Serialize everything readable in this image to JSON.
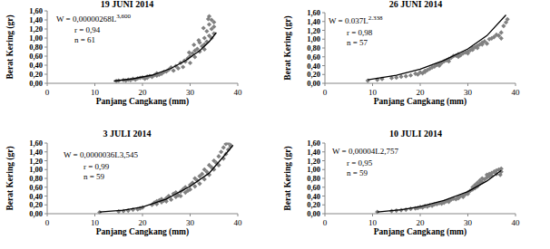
{
  "chart_data": [
    {
      "type": "scatter",
      "title": "19 JUNI 2014",
      "x_label": "Panjang Cangkang (mm)",
      "y_label": "Berat Kering (gr)",
      "xlim": [
        0,
        40
      ],
      "ylim": [
        0,
        1.6
      ],
      "xticks": [
        0,
        10,
        20,
        30,
        40
      ],
      "yticks": [
        {
          "value": 0,
          "label": "0,00"
        },
        {
          "value": 0.2,
          "label": "0,20"
        },
        {
          "value": 0.4,
          "label": "0,40"
        },
        {
          "value": 0.6,
          "label": "0,60"
        },
        {
          "value": 0.8,
          "label": "0,80"
        },
        {
          "value": 1.0,
          "label": "1,00"
        },
        {
          "value": 1.2,
          "label": "1,20"
        },
        {
          "value": 1.4,
          "label": "1,40"
        },
        {
          "value": 1.6,
          "label": "1,60"
        }
      ],
      "annotations": [
        {
          "text": "W = 0,00000268L",
          "superscript": "3,600"
        },
        {
          "text": "r = 0,94"
        },
        {
          "text": "n = 61"
        }
      ],
      "series": [
        {
          "type": "scatter",
          "color": "#808080",
          "marker": "diamond",
          "x": [
            14.5,
            15,
            16,
            16.5,
            17,
            17.5,
            18,
            18.5,
            19,
            19.5,
            20,
            20.5,
            21,
            21,
            21.5,
            22,
            22.5,
            23,
            23,
            23.5,
            24,
            24.5,
            25,
            25.5,
            26,
            26.5,
            27,
            27.5,
            28,
            28.5,
            29,
            29.5,
            30,
            30,
            30.5,
            31,
            31,
            31.5,
            32,
            32,
            32.5,
            33,
            33,
            33,
            33.5,
            33.5,
            34,
            34,
            34,
            34.5,
            34.5,
            34.5,
            35,
            35,
            35,
            33.8,
            32.8,
            31.8,
            30.8,
            29.8,
            28.8
          ],
          "values": [
            0.05,
            0.06,
            0.07,
            0.06,
            0.08,
            0.07,
            0.1,
            0.08,
            0.11,
            0.12,
            0.13,
            0.1,
            0.15,
            0.12,
            0.16,
            0.14,
            0.18,
            0.17,
            0.22,
            0.19,
            0.21,
            0.25,
            0.26,
            0.3,
            0.35,
            0.28,
            0.38,
            0.33,
            0.45,
            0.36,
            0.48,
            0.55,
            0.6,
            0.45,
            0.66,
            0.72,
            0.58,
            0.76,
            0.7,
            0.9,
            0.82,
            0.75,
            1.0,
            0.86,
            1.15,
            0.92,
            1.3,
            1.05,
            1.48,
            1.2,
            1.4,
            1.0,
            1.25,
            1.1,
            1.35,
            1.42,
            1.22,
            0.95,
            0.85,
            0.68,
            0.5
          ]
        },
        {
          "type": "line",
          "color": "#000000",
          "line_style": "solid",
          "x": [
            14,
            18,
            22,
            26,
            29,
            32,
            34,
            35.5
          ],
          "values": [
            0.05,
            0.1,
            0.18,
            0.33,
            0.5,
            0.72,
            0.92,
            1.12
          ]
        }
      ]
    },
    {
      "type": "scatter",
      "title": "26 JUNI 2014",
      "x_label": "Panjang Cangkang (mm)",
      "y_label": "Berat Kering (gr)",
      "xlim": [
        0,
        40
      ],
      "ylim": [
        0,
        1.6
      ],
      "xticks": [
        0,
        10,
        20,
        30,
        40
      ],
      "yticks": [
        {
          "value": 0,
          "label": "0,00"
        },
        {
          "value": 0.2,
          "label": "0,20"
        },
        {
          "value": 0.4,
          "label": "0,40"
        },
        {
          "value": 0.6,
          "label": "0,60"
        },
        {
          "value": 0.8,
          "label": "0,80"
        },
        {
          "value": 1.0,
          "label": "1,00"
        },
        {
          "value": 1.2,
          "label": "1,20"
        },
        {
          "value": 1.4,
          "label": "1,40"
        },
        {
          "value": 1.6,
          "label": "1,60"
        }
      ],
      "annotations": [
        {
          "text": "W = 0.037L",
          "superscript": "2.338"
        },
        {
          "text": "r = 0,98"
        },
        {
          "text": "n = 57"
        }
      ],
      "series": [
        {
          "type": "scatter",
          "color": "#808080",
          "marker": "diamond",
          "x": [
            9,
            11,
            12,
            14,
            15,
            16,
            17,
            18,
            19,
            19.5,
            20,
            20.5,
            21,
            21,
            21.5,
            22,
            22.5,
            23,
            23.5,
            24,
            24,
            24.5,
            25,
            25.5,
            26,
            26,
            26.5,
            27,
            27.5,
            28,
            28,
            28.5,
            29,
            29.5,
            30,
            30,
            30.5,
            31,
            31,
            31.5,
            32,
            32,
            32.5,
            33,
            33,
            33.5,
            34,
            34.5,
            35,
            35.5,
            36,
            36.5,
            37,
            37,
            37.5,
            38,
            38.3
          ],
          "values": [
            0.06,
            0.08,
            0.1,
            0.12,
            0.13,
            0.15,
            0.16,
            0.18,
            0.22,
            0.2,
            0.25,
            0.23,
            0.28,
            0.26,
            0.3,
            0.33,
            0.36,
            0.38,
            0.42,
            0.44,
            0.4,
            0.46,
            0.5,
            0.52,
            0.55,
            0.5,
            0.58,
            0.62,
            0.63,
            0.66,
            0.6,
            0.64,
            0.68,
            0.7,
            0.72,
            0.68,
            0.75,
            0.8,
            0.76,
            0.82,
            0.85,
            0.8,
            0.88,
            0.92,
            0.88,
            0.95,
            0.9,
            1.0,
            1.02,
            1.05,
            1.1,
            1.08,
            1.15,
            1.02,
            1.3,
            1.38,
            1.45
          ]
        },
        {
          "type": "line",
          "color": "#000000",
          "line_style": "solid",
          "x": [
            9,
            15,
            20,
            25,
            30,
            34,
            38
          ],
          "values": [
            0.08,
            0.18,
            0.32,
            0.52,
            0.78,
            1.08,
            1.55
          ]
        }
      ]
    },
    {
      "type": "scatter",
      "title": "3 JULI 2014",
      "x_label": "Panjang Cangkang (mm)",
      "y_label": "Berat Kering (gr)",
      "xlim": [
        0,
        40
      ],
      "ylim": [
        0,
        1.6
      ],
      "xticks": [
        0,
        10,
        20,
        30,
        40
      ],
      "yticks": [
        {
          "value": 0,
          "label": "0,00"
        },
        {
          "value": 0.2,
          "label": "0,20"
        },
        {
          "value": 0.4,
          "label": "0,40"
        },
        {
          "value": 0.6,
          "label": "0,60"
        },
        {
          "value": 0.8,
          "label": "0,80"
        },
        {
          "value": 1.0,
          "label": "1,00"
        },
        {
          "value": 1.2,
          "label": "1,20"
        },
        {
          "value": 1.4,
          "label": "1,40"
        },
        {
          "value": 1.6,
          "label": "1,60"
        }
      ],
      "annotations": [
        {
          "text": "W = 0,0000036L3,545"
        },
        {
          "text": "r = 0,99"
        },
        {
          "text": "n = 59"
        }
      ],
      "series": [
        {
          "type": "scatter",
          "color": "#808080",
          "marker": "diamond",
          "x": [
            11,
            15,
            16,
            17,
            18,
            19,
            19.5,
            20,
            22,
            22.5,
            23,
            23,
            23.5,
            24,
            24,
            24.5,
            25,
            25,
            25.5,
            26,
            26.5,
            27,
            27,
            27.5,
            28,
            28,
            28.5,
            29,
            29,
            29.5,
            30,
            30,
            30.5,
            31,
            31,
            31.5,
            32,
            32,
            32.5,
            33,
            33,
            33.5,
            34,
            34,
            34.5,
            35,
            35,
            35.5,
            36,
            36,
            36.5,
            37,
            37,
            37.5,
            37.5,
            38,
            38,
            38.5,
            38.5
          ],
          "values": [
            0.03,
            0.05,
            0.06,
            0.07,
            0.09,
            0.1,
            0.12,
            0.14,
            0.2,
            0.25,
            0.22,
            0.28,
            0.3,
            0.26,
            0.33,
            0.3,
            0.35,
            0.28,
            0.4,
            0.32,
            0.45,
            0.38,
            0.48,
            0.42,
            0.5,
            0.4,
            0.55,
            0.6,
            0.48,
            0.52,
            0.65,
            0.55,
            0.7,
            0.62,
            0.8,
            0.75,
            0.85,
            0.68,
            0.9,
            0.78,
            1.0,
            0.95,
            1.1,
            0.88,
            1.05,
            1.2,
            1.0,
            1.15,
            1.3,
            1.1,
            1.4,
            1.5,
            1.25,
            1.58,
            1.35,
            1.6,
            1.45,
            1.55,
            1.52
          ]
        },
        {
          "type": "line",
          "color": "#000000",
          "line_style": "solid",
          "x": [
            11,
            16,
            20,
            25,
            30,
            34,
            38,
            39
          ],
          "values": [
            0.04,
            0.08,
            0.15,
            0.33,
            0.62,
            0.92,
            1.42,
            1.55
          ]
        }
      ]
    },
    {
      "type": "scatter",
      "title": "10 JULI 2014",
      "x_label": "Panjang Cangkang (mm)",
      "y_label": "Berat Kering (gr)",
      "xlim": [
        0,
        40
      ],
      "ylim": [
        0,
        1.6
      ],
      "xticks": [
        0,
        10,
        20,
        30,
        40
      ],
      "yticks": [
        {
          "value": 0,
          "label": "0,00"
        },
        {
          "value": 0.2,
          "label": "0,20"
        },
        {
          "value": 0.4,
          "label": "0,40"
        },
        {
          "value": 0.6,
          "label": "0,60"
        },
        {
          "value": 0.8,
          "label": "0,80"
        },
        {
          "value": 1.0,
          "label": "1,00"
        },
        {
          "value": 1.2,
          "label": "1,20"
        },
        {
          "value": 1.4,
          "label": "1,40"
        },
        {
          "value": 1.6,
          "label": "1,60"
        }
      ],
      "annotations": [
        {
          "text": "W = 0,00004L2,757"
        },
        {
          "text": "r = 0,95"
        },
        {
          "text": "n = 59"
        }
      ],
      "series": [
        {
          "type": "scatter",
          "color": "#808080",
          "marker": "diamond",
          "x": [
            11,
            14,
            15,
            16,
            17,
            18,
            19,
            19.5,
            20,
            20.5,
            21,
            21.5,
            22,
            22.5,
            23,
            23.5,
            24,
            24.5,
            25,
            25,
            25.5,
            26,
            26,
            26.5,
            27,
            27.5,
            28,
            28,
            28.5,
            29,
            29,
            29.5,
            30,
            30,
            30.5,
            31,
            31,
            31.5,
            31.5,
            32,
            32,
            32.5,
            32.5,
            33,
            33,
            33.5,
            34,
            34,
            34.5,
            34.5,
            35,
            35,
            35.5,
            36,
            36,
            36.5,
            37,
            37,
            36.8
          ],
          "values": [
            0.04,
            0.06,
            0.07,
            0.08,
            0.09,
            0.11,
            0.12,
            0.13,
            0.15,
            0.14,
            0.17,
            0.16,
            0.19,
            0.18,
            0.21,
            0.22,
            0.24,
            0.23,
            0.27,
            0.25,
            0.28,
            0.3,
            0.27,
            0.32,
            0.34,
            0.33,
            0.37,
            0.35,
            0.4,
            0.42,
            0.38,
            0.44,
            0.48,
            0.45,
            0.52,
            0.55,
            0.6,
            0.58,
            0.65,
            0.62,
            0.7,
            0.68,
            0.75,
            0.72,
            0.8,
            0.78,
            0.82,
            0.88,
            0.85,
            0.9,
            0.92,
            0.86,
            0.95,
            0.98,
            0.9,
            1.0,
            1.02,
            0.95,
            0.88
          ]
        },
        {
          "type": "line",
          "color": "#000000",
          "line_style": "solid",
          "x": [
            11,
            16,
            20,
            25,
            30,
            34,
            37
          ],
          "values": [
            0.04,
            0.09,
            0.16,
            0.3,
            0.5,
            0.74,
            0.98
          ]
        }
      ]
    }
  ]
}
